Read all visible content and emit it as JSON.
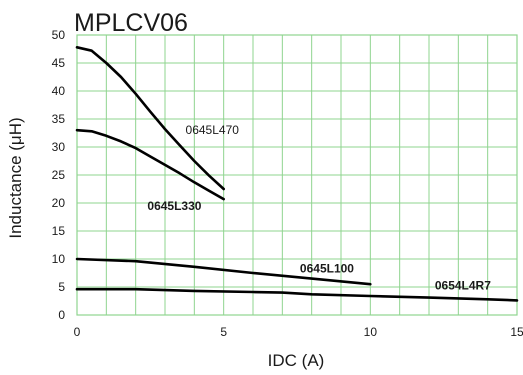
{
  "chart_data": {
    "type": "line",
    "title": "MPLCV06",
    "xlabel": "IDC (A)",
    "ylabel": "Inductance (μH)",
    "xlim": [
      0,
      15
    ],
    "ylim": [
      0,
      50
    ],
    "xticks": [
      "0",
      "5",
      "10",
      "15"
    ],
    "yticks": [
      "0",
      "5",
      "10",
      "15",
      "20",
      "25",
      "30",
      "35",
      "40",
      "45",
      "50"
    ],
    "grid": true,
    "grid_color": "#8fd48f",
    "frame_color": "#8fd48f",
    "line_color": "#000000",
    "series": [
      {
        "name": "0645L470",
        "x": [
          0,
          0.5,
          1,
          1.5,
          2,
          2.5,
          3,
          3.5,
          4,
          4.5,
          5
        ],
        "y": [
          47.8,
          47.2,
          45,
          42.5,
          39.5,
          36.3,
          33.2,
          30.3,
          27.5,
          24.9,
          22.5
        ]
      },
      {
        "name": "0645L330",
        "x": [
          0,
          0.5,
          1,
          1.5,
          2,
          2.5,
          3,
          3.5,
          4,
          4.5,
          5
        ],
        "y": [
          33,
          32.8,
          32,
          31,
          29.8,
          28.3,
          26.8,
          25.3,
          23.7,
          22.2,
          20.7
        ]
      },
      {
        "name": "0645L100",
        "x": [
          0,
          2,
          4,
          6,
          8,
          10
        ],
        "y": [
          10,
          9.6,
          8.6,
          7.5,
          6.5,
          5.5
        ]
      },
      {
        "name": "0654L4R7",
        "x": [
          0,
          2,
          4,
          6,
          7,
          8,
          10,
          12,
          14,
          15
        ],
        "y": [
          4.6,
          4.6,
          4.3,
          4.1,
          4.0,
          3.7,
          3.4,
          3.1,
          2.8,
          2.6
        ]
      }
    ]
  }
}
